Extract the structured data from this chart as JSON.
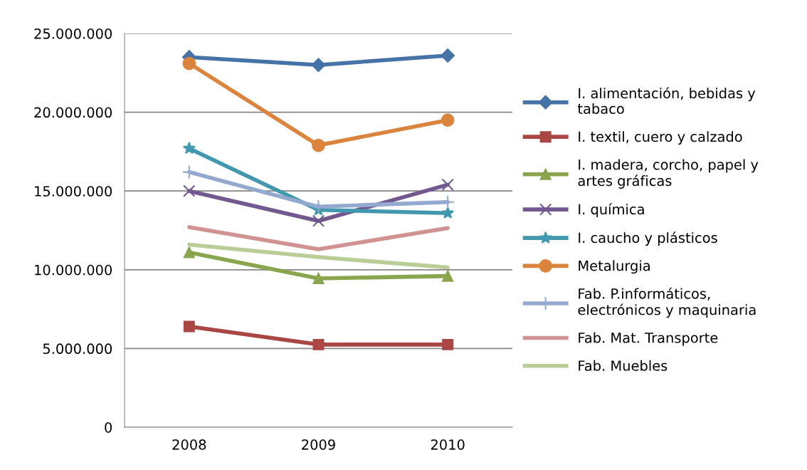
{
  "chart_data": {
    "type": "line",
    "categories": [
      "2008",
      "2009",
      "2010"
    ],
    "ylim": [
      0,
      25000000
    ],
    "yticks": [
      {
        "value": 0,
        "label": "0"
      },
      {
        "value": 5000000,
        "label": "5.000.000"
      },
      {
        "value": 10000000,
        "label": "10.000.000"
      },
      {
        "value": 15000000,
        "label": "15.000.000"
      },
      {
        "value": 20000000,
        "label": "20.000.000"
      },
      {
        "value": 25000000,
        "label": "25.000.000"
      }
    ],
    "grid": "y",
    "legend": "right",
    "series": [
      {
        "name": "I. alimentación, bebidas y\ntabaco",
        "color": "#4572a7",
        "marker": "diamond",
        "values": [
          23500000,
          23000000,
          23600000
        ]
      },
      {
        "name": "I. textil, cuero y calzado",
        "color": "#aa4643",
        "marker": "square",
        "values": [
          6400000,
          5250000,
          5250000
        ]
      },
      {
        "name": "I. madera, corcho, papel y\nartes gráficas",
        "color": "#89a54e",
        "marker": "triangle",
        "values": [
          11100000,
          9450000,
          9600000
        ]
      },
      {
        "name": "I. química",
        "color": "#71588f",
        "marker": "cross",
        "values": [
          15000000,
          13100000,
          15400000
        ]
      },
      {
        "name": "I. caucho y plásticos",
        "color": "#4198af",
        "marker": "star",
        "values": [
          17700000,
          13800000,
          13600000
        ]
      },
      {
        "name": "Metalurgia",
        "color": "#db843d",
        "marker": "circle",
        "values": [
          23100000,
          17900000,
          19500000
        ]
      },
      {
        "name": "Fab. P.informáticos,\nelectrónicos y maquinaria",
        "color": "#93a9cf",
        "marker": "plus",
        "values": [
          16200000,
          14000000,
          14300000
        ]
      },
      {
        "name": "Fab. Mat. Transporte",
        "color": "#d19392",
        "marker": "none",
        "values": [
          12700000,
          11300000,
          12650000
        ]
      },
      {
        "name": "Fab. Muebles",
        "color": "#b9cd96",
        "marker": "none",
        "values": [
          11600000,
          10800000,
          10150000
        ]
      }
    ]
  }
}
